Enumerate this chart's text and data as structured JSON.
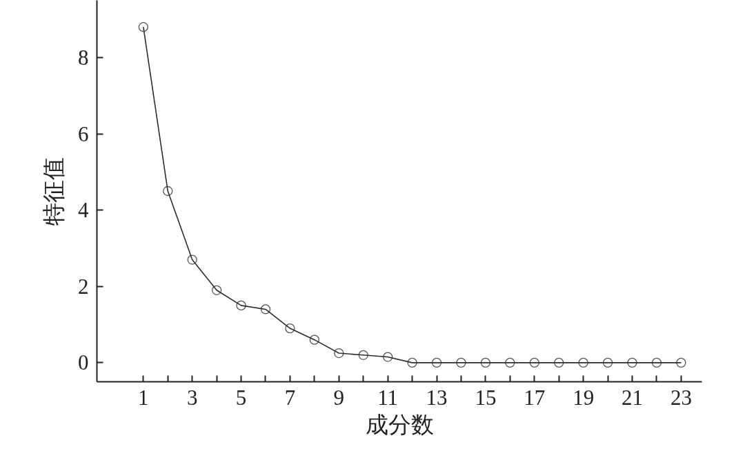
{
  "chart_data": {
    "type": "line",
    "xlabel": "成分数",
    "ylabel": "特征值",
    "x": [
      1,
      2,
      3,
      4,
      5,
      6,
      7,
      8,
      9,
      10,
      11,
      12,
      13,
      14,
      15,
      16,
      17,
      18,
      19,
      20,
      21,
      22,
      23
    ],
    "series": [
      {
        "color": "#2b2b2b",
        "values": [
          8.8,
          4.5,
          2.7,
          1.9,
          1.5,
          1.4,
          0.9,
          0.6,
          0.25,
          0.2,
          0.15,
          0,
          0,
          0,
          0,
          0,
          0,
          0,
          0,
          0,
          0,
          0,
          0
        ]
      }
    ],
    "xlim": [
      -0.9,
      23.85
    ],
    "ylim": [
      -0.5,
      9.5
    ],
    "xticks": [
      1,
      {
        "value": 2,
        "label": null
      },
      3,
      {
        "value": 4,
        "label": null
      },
      5,
      {
        "value": 6,
        "label": null
      },
      7,
      {
        "value": 8,
        "label": null
      },
      9,
      {
        "value": 10,
        "label": null
      },
      11,
      {
        "value": 12,
        "label": null
      },
      13,
      {
        "value": 14,
        "label": null
      },
      15,
      {
        "value": 16,
        "label": null
      },
      17,
      {
        "value": 18,
        "label": null
      },
      19,
      {
        "value": 20,
        "label": null
      },
      21,
      {
        "value": 22,
        "label": null
      },
      23
    ],
    "yticks": [
      0,
      2,
      4,
      6,
      8
    ],
    "marker": "circle",
    "line_style": "solid"
  }
}
